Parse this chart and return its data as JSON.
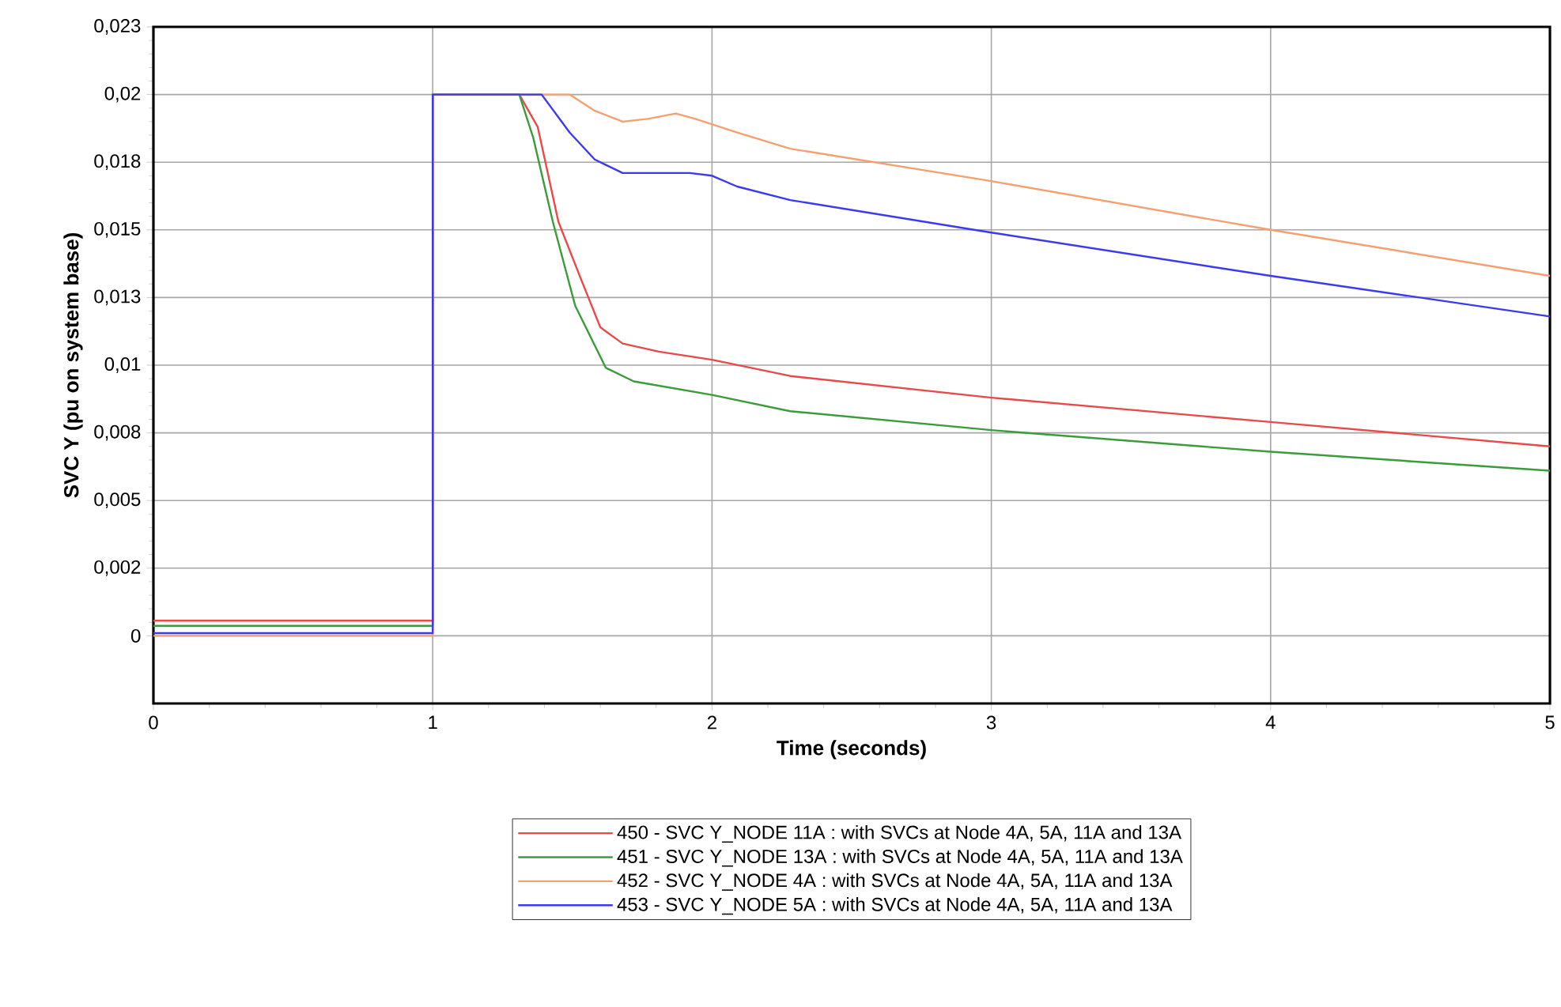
{
  "chart_data": {
    "type": "line",
    "xlabel": "Time (seconds)",
    "ylabel": "SVC Y (pu on system base)",
    "xlim": [
      0,
      5
    ],
    "xticks": [
      0,
      1,
      2,
      3,
      4,
      5
    ],
    "ylim": [
      -0.0025,
      0.0225
    ],
    "yticks": [
      0,
      {
        "value": 0.0025,
        "label": "0,002"
      },
      {
        "value": 0.005,
        "label": "0,005"
      },
      {
        "value": 0.0075,
        "label": "0,008"
      },
      {
        "value": 0.01,
        "label": "0,01"
      },
      {
        "value": 0.0125,
        "label": "0,013"
      },
      {
        "value": 0.015,
        "label": "0,015"
      },
      {
        "value": 0.0175,
        "label": "0,018"
      },
      {
        "value": 0.02,
        "label": "0,02"
      },
      {
        "value": 0.0225,
        "label": "0,023"
      }
    ],
    "grid": true,
    "legend": "bottom",
    "marker": "none",
    "line_style": "solid",
    "series": [
      {
        "name": "450 - SVC Y_NODE 11A : with SVCs at Node 4A, 5A, 11A and 13A",
        "color": "#e84a4a",
        "x": [
          0,
          1,
          1,
          1.31,
          1.376,
          1.45,
          1.53,
          1.6,
          1.68,
          1.81,
          2,
          2.28,
          3,
          4,
          5
        ],
        "values": [
          0.00056,
          0.00056,
          0.02,
          0.02,
          0.0188,
          0.0153,
          0.0132,
          0.0114,
          0.0108,
          0.0105,
          0.0102,
          0.0096,
          0.0088,
          0.0079,
          0.007
        ]
      },
      {
        "name": "451 - SVC Y_NODE 13A : with SVCs at Node 4A, 5A, 11A and 13A",
        "color": "#3a9c3a",
        "x": [
          0,
          1,
          1,
          1.31,
          1.36,
          1.43,
          1.51,
          1.62,
          1.72,
          2,
          2.28,
          3,
          4,
          5
        ],
        "values": [
          0.00037,
          0.00037,
          0.02,
          0.02,
          0.0184,
          0.0153,
          0.0122,
          0.0099,
          0.0094,
          0.0089,
          0.0083,
          0.0076,
          0.0068,
          0.0061
        ]
      },
      {
        "name": "452 - SVC Y_NODE 4A : with SVCs at Node 4A, 5A, 11A and 13A",
        "color": "#f4a070",
        "x": [
          0,
          1,
          1,
          1.49,
          1.58,
          1.68,
          1.77,
          1.87,
          1.94,
          2.09,
          2.28,
          3,
          4,
          5
        ],
        "values": [
          0,
          0,
          0.02,
          0.02,
          0.0194,
          0.019,
          0.0191,
          0.0193,
          0.0191,
          0.0186,
          0.018,
          0.0168,
          0.015,
          0.0133
        ]
      },
      {
        "name": "453 - SVC Y_NODE 5A : with SVCs at Node 4A, 5A, 11A and 13A",
        "color": "#3a3af0",
        "x": [
          0,
          1,
          1,
          1.39,
          1.49,
          1.58,
          1.68,
          1.92,
          2,
          2.09,
          2.28,
          3,
          4,
          5
        ],
        "values": [
          0.0001,
          0.0001,
          0.02,
          0.02,
          0.0186,
          0.0176,
          0.0171,
          0.0171,
          0.017,
          0.0166,
          0.0161,
          0.0149,
          0.0133,
          0.0118
        ]
      }
    ]
  }
}
